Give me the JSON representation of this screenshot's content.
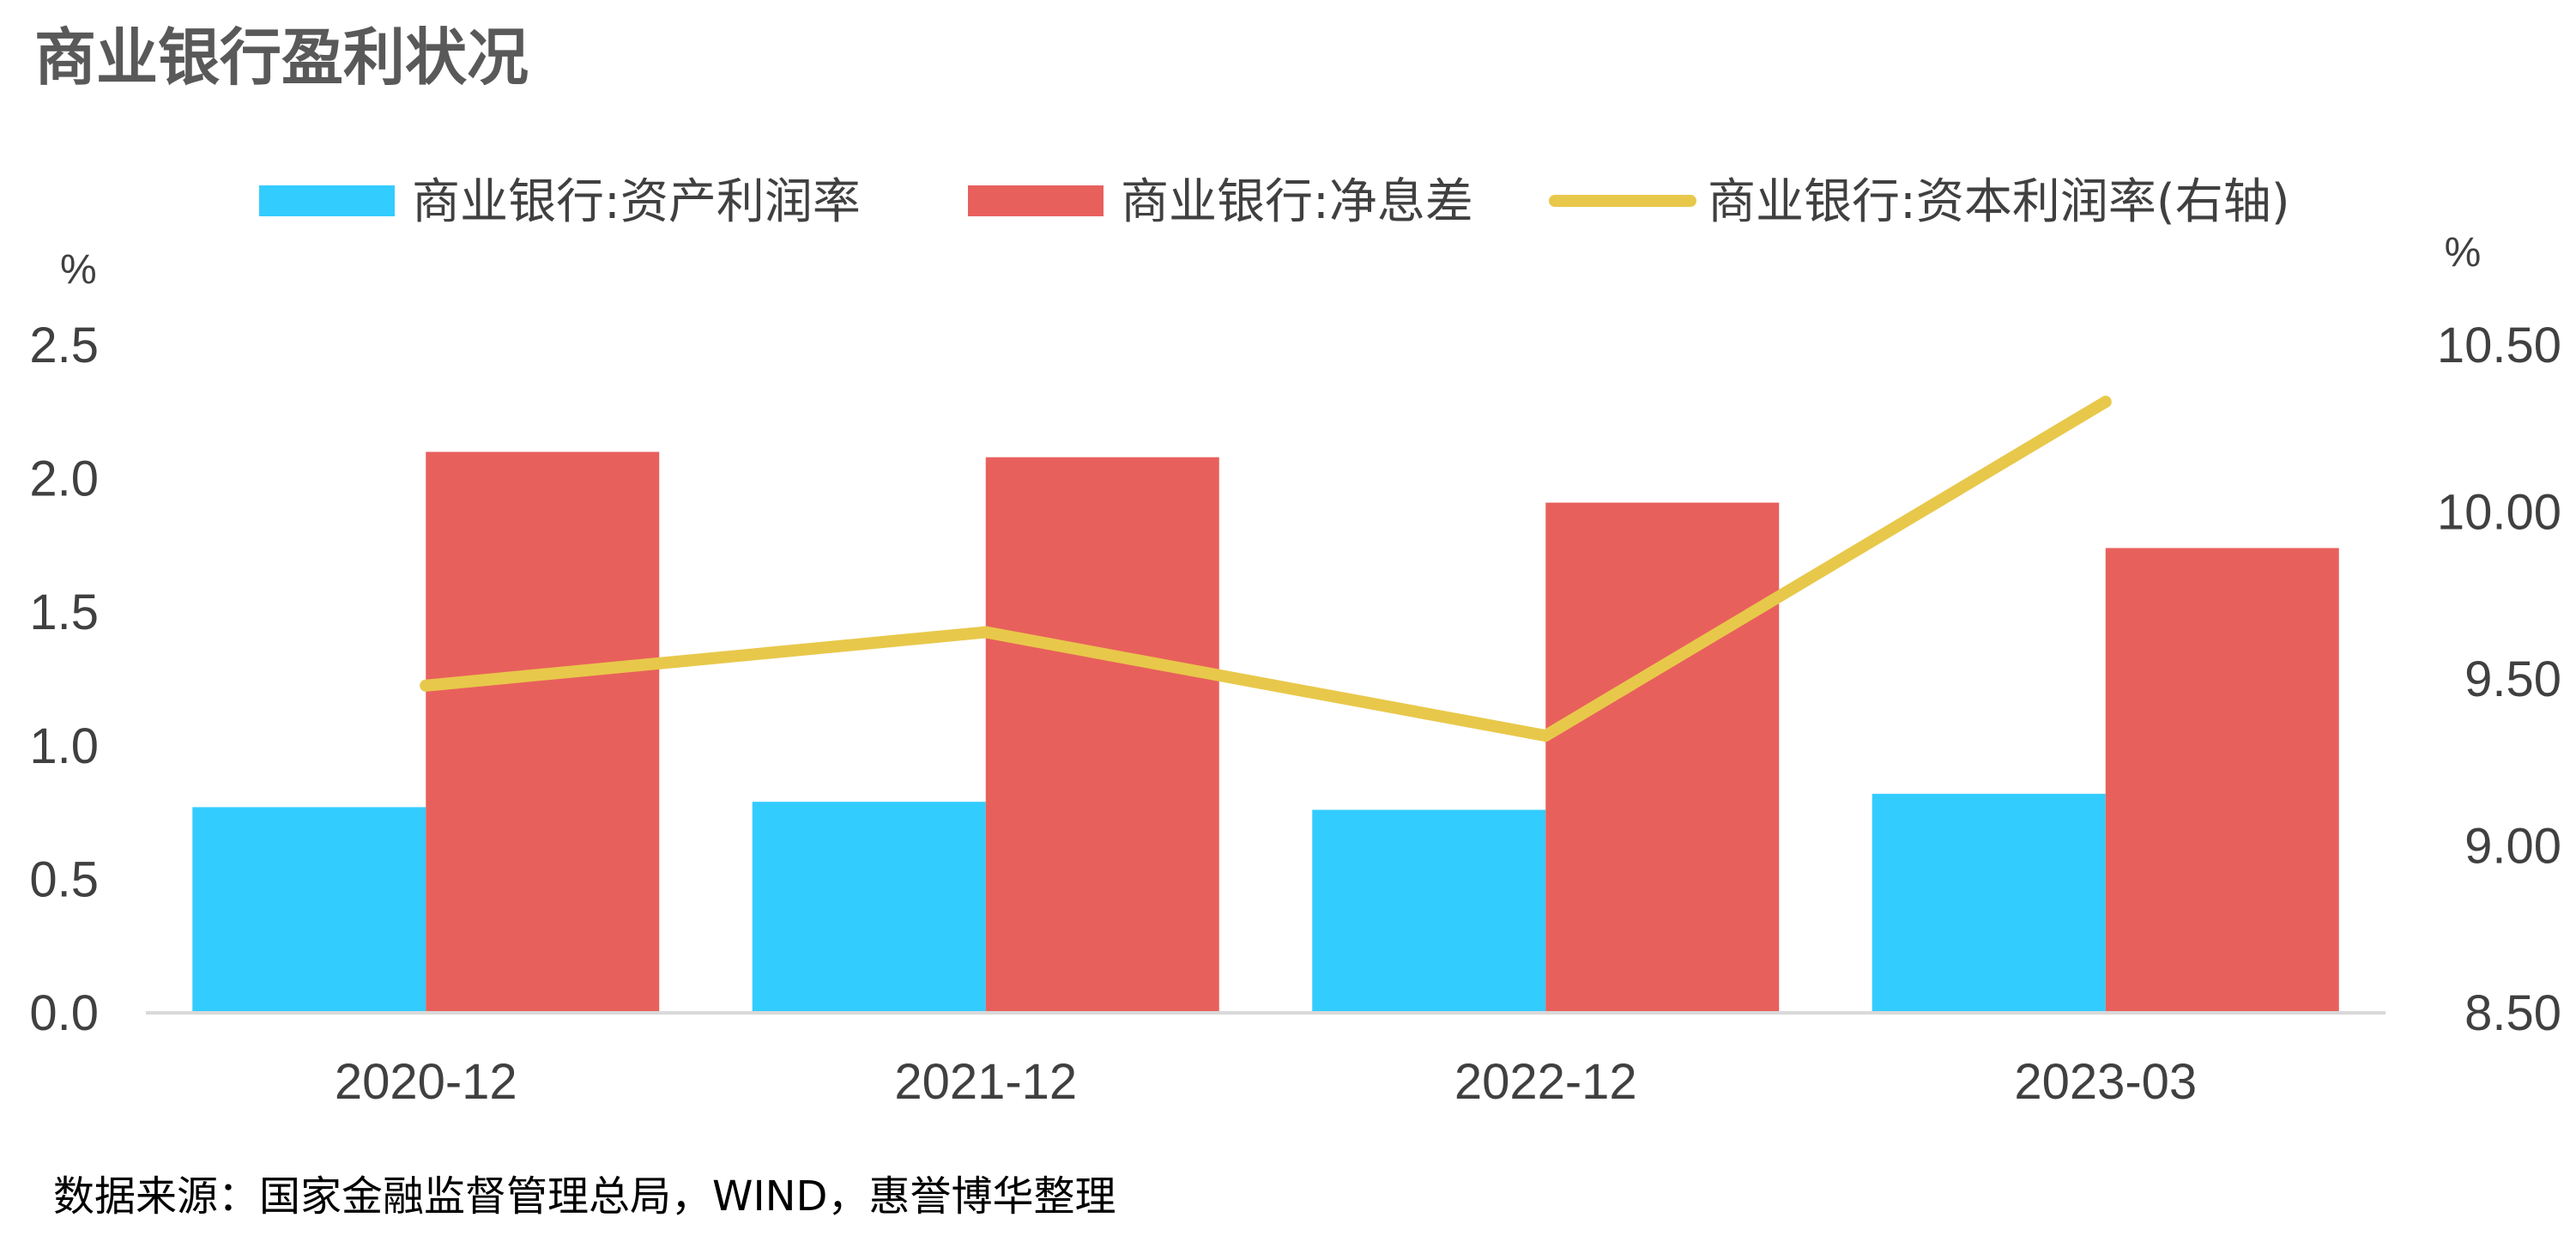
{
  "chart_data": {
    "type": "bar",
    "title": "商业银行盈利状况",
    "categories": [
      "2020-12",
      "2021-12",
      "2022-12",
      "2023-03"
    ],
    "series": [
      {
        "name": "商业银行:资产利润率",
        "type": "bar",
        "axis": "left",
        "color": "#33CCFF",
        "values": [
          0.77,
          0.79,
          0.76,
          0.82
        ]
      },
      {
        "name": "商业银行:净息差",
        "type": "bar",
        "axis": "left",
        "color": "#E8605C",
        "values": [
          2.1,
          2.08,
          1.91,
          1.74
        ]
      },
      {
        "name": "商业银行:资本利润率(右轴)",
        "type": "line",
        "axis": "right",
        "color": "#E8C84A",
        "values": [
          9.48,
          9.64,
          9.33,
          10.33
        ]
      }
    ],
    "y_left": {
      "unit": "%",
      "ylim": [
        0,
        2.5
      ],
      "ticks": [
        "0.0",
        "0.5",
        "1.0",
        "1.5",
        "2.0",
        "2.5"
      ]
    },
    "y_right": {
      "unit": "%",
      "ylim": [
        8.5,
        10.5
      ],
      "ticks": [
        "8.50",
        "9.00",
        "9.50",
        "10.00",
        "10.50"
      ]
    },
    "grid": false,
    "legend": "top",
    "source": "数据来源：国家金融监督管理总局，WIND，惠誉博华整理"
  }
}
